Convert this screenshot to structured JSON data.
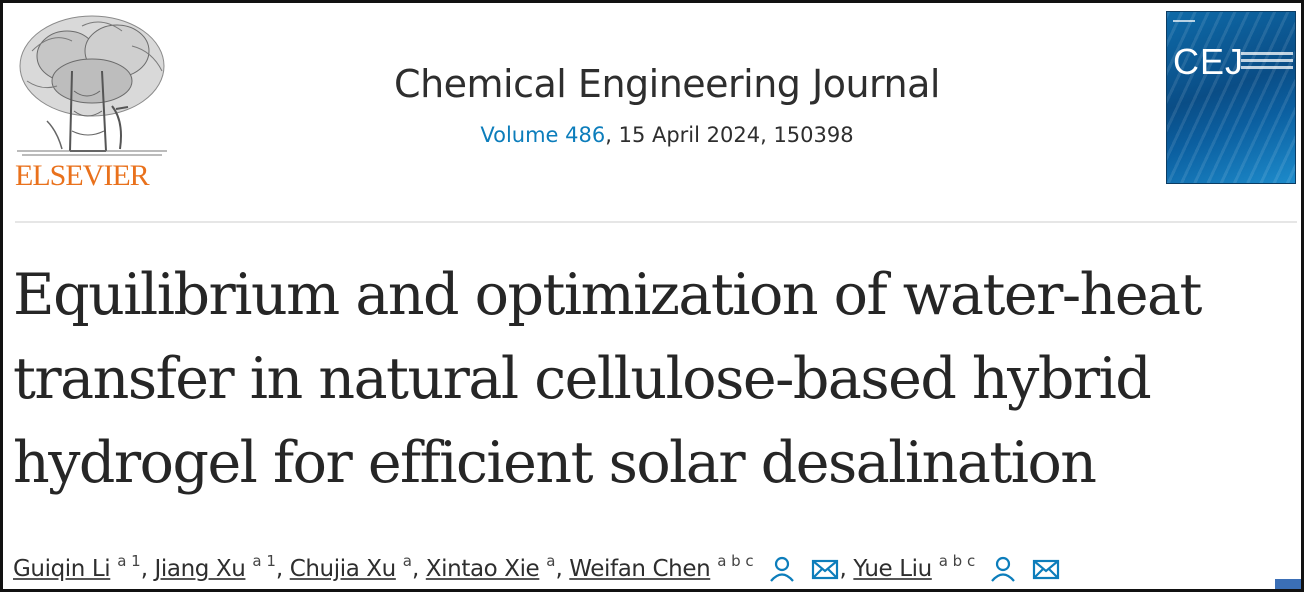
{
  "publisher": {
    "name": "ELSEVIER",
    "logo_icon": "tree-of-knowledge-icon"
  },
  "journal": {
    "title": "Chemical Engineering Journal",
    "volume_label": "Volume 486",
    "issue_rest": ", 15 April 2024, 150398",
    "cover_abbr": "CEJ",
    "link_color": "#0c7dbb"
  },
  "article": {
    "title_lines": [
      "Equilibrium and optimization of water-heat",
      "transfer in natural cellulose-based hybrid",
      "hydrogel for efficient solar desalination"
    ]
  },
  "authors": [
    {
      "name": "Guiqin Li",
      "aff": "a 1"
    },
    {
      "name": "Jiang Xu",
      "aff": "a 1"
    },
    {
      "name": "Chujia Xu",
      "aff": "a"
    },
    {
      "name": "Xintao Xie",
      "aff": "a"
    },
    {
      "name": "Weifan Chen",
      "aff": "a b c",
      "icons": [
        "person-icon",
        "email-icon"
      ]
    },
    {
      "name": "Yue Liu",
      "aff": "a b c",
      "icons": [
        "person-icon",
        "email-icon"
      ]
    }
  ],
  "colors": {
    "elsevier_orange": "#e9711c",
    "text": "#2e2e2e",
    "icon_blue": "#0c7dbb"
  }
}
